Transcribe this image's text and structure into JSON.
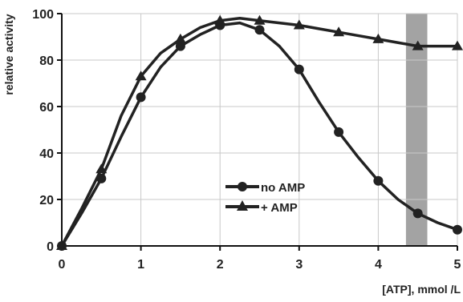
{
  "chart_data": {
    "type": "line",
    "title": "",
    "xlabel": "[ATP], mmol /L",
    "ylabel": "relative activity",
    "xlim": [
      0,
      5
    ],
    "ylim": [
      0,
      100
    ],
    "x_ticks": [
      "0",
      "1",
      "2",
      "3",
      "4",
      "5"
    ],
    "y_ticks": [
      "0",
      "20",
      "40",
      "60",
      "80",
      "100"
    ],
    "grid": true,
    "shaded_band": {
      "x_start": 4.35,
      "x_end": 4.62
    },
    "legend_position": "center-right",
    "series": [
      {
        "name": "no AMP",
        "marker": "circle",
        "x": [
          0,
          0.5,
          1,
          1.5,
          2,
          2.5,
          3,
          3.5,
          4,
          4.5,
          5
        ],
        "y": [
          0,
          29,
          64,
          86,
          95,
          93,
          76,
          49,
          28,
          14,
          7
        ],
        "curve_x": [
          0,
          0.25,
          0.5,
          0.75,
          1,
          1.25,
          1.5,
          1.75,
          2,
          2.25,
          2.5,
          2.75,
          3,
          3.25,
          3.5,
          3.75,
          4,
          4.25,
          4.5,
          4.75,
          5
        ],
        "curve_y": [
          0,
          14,
          29,
          47,
          64,
          77,
          86,
          91,
          95,
          96,
          93,
          86,
          76,
          62,
          49,
          38,
          28,
          20,
          14,
          10,
          7
        ]
      },
      {
        "name": "+ AMP",
        "marker": "triangle",
        "x": [
          0,
          0.5,
          1,
          1.5,
          2,
          2.5,
          3,
          3.5,
          4,
          4.5,
          5
        ],
        "y": [
          0,
          33,
          73,
          89,
          97,
          97,
          95,
          92,
          89,
          86,
          86
        ],
        "curve_x": [
          0,
          0.25,
          0.5,
          0.75,
          1,
          1.25,
          1.5,
          1.75,
          2,
          2.25,
          2.5,
          2.75,
          3,
          3.25,
          3.5,
          3.75,
          4,
          4.25,
          4.5,
          4.75,
          5
        ],
        "curve_y": [
          0,
          16,
          33,
          56,
          73,
          83,
          89,
          94,
          97,
          98,
          97,
          96,
          95,
          93.5,
          92,
          90.5,
          89,
          87.5,
          86,
          86,
          86
        ]
      }
    ]
  }
}
